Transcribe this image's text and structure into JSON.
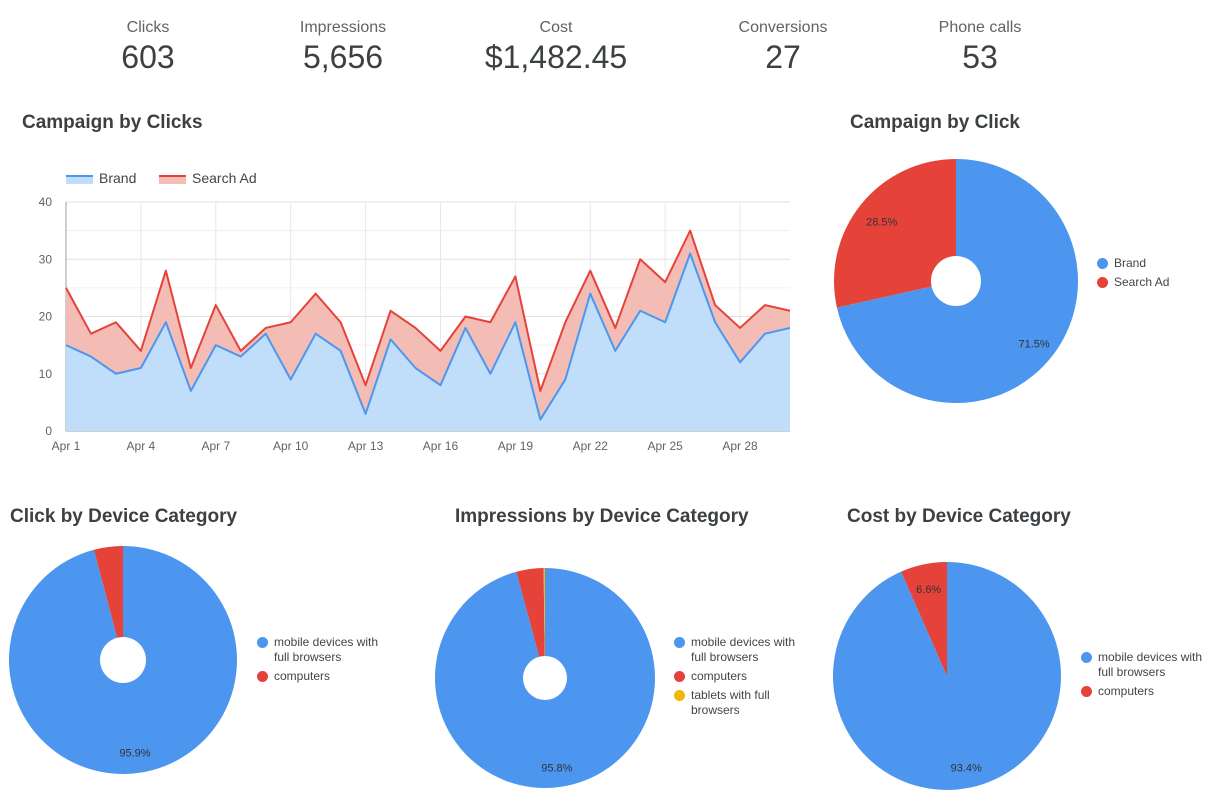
{
  "kpis": [
    {
      "label": "Clicks",
      "value": "603"
    },
    {
      "label": "Impressions",
      "value": "5,656"
    },
    {
      "label": "Cost",
      "value": "$1,482.45"
    },
    {
      "label": "Conversions",
      "value": "27"
    },
    {
      "label": "Phone calls",
      "value": "53"
    }
  ],
  "colors": {
    "blue": "#4d96f0",
    "red": "#e5423a",
    "yellow": "#f2b807",
    "blue_fill": "#c0defa",
    "red_fill": "#f3bdb6"
  },
  "chart_data": [
    {
      "type": "area",
      "stacked": true,
      "title": "Campaign by Clicks",
      "legend": [
        "Brand",
        "Search Ad"
      ],
      "categories": [
        "Apr 1",
        "Apr 2",
        "Apr 3",
        "Apr 4",
        "Apr 5",
        "Apr 6",
        "Apr 7",
        "Apr 8",
        "Apr 9",
        "Apr 10",
        "Apr 11",
        "Apr 12",
        "Apr 13",
        "Apr 14",
        "Apr 15",
        "Apr 16",
        "Apr 17",
        "Apr 18",
        "Apr 19",
        "Apr 20",
        "Apr 21",
        "Apr 22",
        "Apr 23",
        "Apr 24",
        "Apr 25",
        "Apr 26",
        "Apr 27",
        "Apr 28",
        "Apr 29",
        "Apr 30"
      ],
      "x_tick_labels": [
        "Apr 1",
        "Apr 4",
        "Apr 7",
        "Apr 10",
        "Apr 13",
        "Apr 16",
        "Apr 19",
        "Apr 22",
        "Apr 25",
        "Apr 28"
      ],
      "y_ticks": [
        "0",
        "10",
        "20",
        "30",
        "40"
      ],
      "ylim": [
        0,
        40
      ],
      "series": [
        {
          "name": "Brand",
          "values": [
            15,
            13,
            10,
            11,
            19,
            7,
            15,
            13,
            17,
            9,
            17,
            14,
            3,
            16,
            11,
            8,
            18,
            10,
            19,
            2,
            9,
            24,
            14,
            21,
            19,
            31,
            19,
            12,
            17,
            18
          ]
        },
        {
          "name": "Search Ad",
          "values": [
            10,
            4,
            9,
            3,
            9,
            4,
            7,
            1,
            1,
            10,
            7,
            5,
            5,
            5,
            7,
            6,
            2,
            9,
            8,
            5,
            10,
            4,
            4,
            9,
            7,
            4,
            3,
            6,
            5,
            3
          ]
        }
      ]
    },
    {
      "type": "pie",
      "title": "Campaign by Click",
      "slices": [
        {
          "label": "Brand",
          "value": 71.5,
          "pct_label": "71.5%"
        },
        {
          "label": "Search Ad",
          "value": 28.5,
          "pct_label": "28.5%"
        }
      ]
    },
    {
      "type": "pie",
      "title": "Click by Device Category",
      "slices": [
        {
          "label": "mobile devices with full browsers",
          "value": 95.9,
          "pct_label": "95.9%"
        },
        {
          "label": "computers",
          "value": 4.1,
          "pct_label": ""
        }
      ]
    },
    {
      "type": "pie",
      "title": "Impressions by Device Category",
      "slices": [
        {
          "label": "mobile devices with full browsers",
          "value": 95.8,
          "pct_label": "95.8%"
        },
        {
          "label": "computers",
          "value": 4.0,
          "pct_label": ""
        },
        {
          "label": "tablets with full browsers",
          "value": 0.2,
          "pct_label": ""
        }
      ]
    },
    {
      "type": "pie",
      "title": "Cost by Device Category",
      "slices": [
        {
          "label": "mobile devices with full browsers",
          "value": 93.4,
          "pct_label": "93.4%"
        },
        {
          "label": "computers",
          "value": 6.6,
          "pct_label": "6.6%"
        }
      ]
    }
  ]
}
